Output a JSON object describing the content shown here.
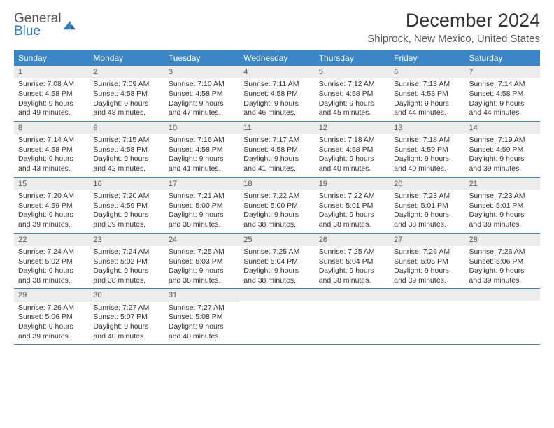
{
  "logo": {
    "text1": "General",
    "text2": "Blue"
  },
  "title": "December 2024",
  "location": "Shiprock, New Mexico, United States",
  "colors": {
    "header_bg": "#3b86c6",
    "header_text": "#ffffff",
    "daynum_bg": "#ececec",
    "rule": "#3b86c6",
    "logo_blue": "#2a7dc1"
  },
  "day_names": [
    "Sunday",
    "Monday",
    "Tuesday",
    "Wednesday",
    "Thursday",
    "Friday",
    "Saturday"
  ],
  "weeks": [
    [
      {
        "n": "1",
        "sr": "Sunrise: 7:08 AM",
        "ss": "Sunset: 4:58 PM",
        "dl": "Daylight: 9 hours and 49 minutes."
      },
      {
        "n": "2",
        "sr": "Sunrise: 7:09 AM",
        "ss": "Sunset: 4:58 PM",
        "dl": "Daylight: 9 hours and 48 minutes."
      },
      {
        "n": "3",
        "sr": "Sunrise: 7:10 AM",
        "ss": "Sunset: 4:58 PM",
        "dl": "Daylight: 9 hours and 47 minutes."
      },
      {
        "n": "4",
        "sr": "Sunrise: 7:11 AM",
        "ss": "Sunset: 4:58 PM",
        "dl": "Daylight: 9 hours and 46 minutes."
      },
      {
        "n": "5",
        "sr": "Sunrise: 7:12 AM",
        "ss": "Sunset: 4:58 PM",
        "dl": "Daylight: 9 hours and 45 minutes."
      },
      {
        "n": "6",
        "sr": "Sunrise: 7:13 AM",
        "ss": "Sunset: 4:58 PM",
        "dl": "Daylight: 9 hours and 44 minutes."
      },
      {
        "n": "7",
        "sr": "Sunrise: 7:14 AM",
        "ss": "Sunset: 4:58 PM",
        "dl": "Daylight: 9 hours and 44 minutes."
      }
    ],
    [
      {
        "n": "8",
        "sr": "Sunrise: 7:14 AM",
        "ss": "Sunset: 4:58 PM",
        "dl": "Daylight: 9 hours and 43 minutes."
      },
      {
        "n": "9",
        "sr": "Sunrise: 7:15 AM",
        "ss": "Sunset: 4:58 PM",
        "dl": "Daylight: 9 hours and 42 minutes."
      },
      {
        "n": "10",
        "sr": "Sunrise: 7:16 AM",
        "ss": "Sunset: 4:58 PM",
        "dl": "Daylight: 9 hours and 41 minutes."
      },
      {
        "n": "11",
        "sr": "Sunrise: 7:17 AM",
        "ss": "Sunset: 4:58 PM",
        "dl": "Daylight: 9 hours and 41 minutes."
      },
      {
        "n": "12",
        "sr": "Sunrise: 7:18 AM",
        "ss": "Sunset: 4:58 PM",
        "dl": "Daylight: 9 hours and 40 minutes."
      },
      {
        "n": "13",
        "sr": "Sunrise: 7:18 AM",
        "ss": "Sunset: 4:59 PM",
        "dl": "Daylight: 9 hours and 40 minutes."
      },
      {
        "n": "14",
        "sr": "Sunrise: 7:19 AM",
        "ss": "Sunset: 4:59 PM",
        "dl": "Daylight: 9 hours and 39 minutes."
      }
    ],
    [
      {
        "n": "15",
        "sr": "Sunrise: 7:20 AM",
        "ss": "Sunset: 4:59 PM",
        "dl": "Daylight: 9 hours and 39 minutes."
      },
      {
        "n": "16",
        "sr": "Sunrise: 7:20 AM",
        "ss": "Sunset: 4:59 PM",
        "dl": "Daylight: 9 hours and 39 minutes."
      },
      {
        "n": "17",
        "sr": "Sunrise: 7:21 AM",
        "ss": "Sunset: 5:00 PM",
        "dl": "Daylight: 9 hours and 38 minutes."
      },
      {
        "n": "18",
        "sr": "Sunrise: 7:22 AM",
        "ss": "Sunset: 5:00 PM",
        "dl": "Daylight: 9 hours and 38 minutes."
      },
      {
        "n": "19",
        "sr": "Sunrise: 7:22 AM",
        "ss": "Sunset: 5:01 PM",
        "dl": "Daylight: 9 hours and 38 minutes."
      },
      {
        "n": "20",
        "sr": "Sunrise: 7:23 AM",
        "ss": "Sunset: 5:01 PM",
        "dl": "Daylight: 9 hours and 38 minutes."
      },
      {
        "n": "21",
        "sr": "Sunrise: 7:23 AM",
        "ss": "Sunset: 5:01 PM",
        "dl": "Daylight: 9 hours and 38 minutes."
      }
    ],
    [
      {
        "n": "22",
        "sr": "Sunrise: 7:24 AM",
        "ss": "Sunset: 5:02 PM",
        "dl": "Daylight: 9 hours and 38 minutes."
      },
      {
        "n": "23",
        "sr": "Sunrise: 7:24 AM",
        "ss": "Sunset: 5:02 PM",
        "dl": "Daylight: 9 hours and 38 minutes."
      },
      {
        "n": "24",
        "sr": "Sunrise: 7:25 AM",
        "ss": "Sunset: 5:03 PM",
        "dl": "Daylight: 9 hours and 38 minutes."
      },
      {
        "n": "25",
        "sr": "Sunrise: 7:25 AM",
        "ss": "Sunset: 5:04 PM",
        "dl": "Daylight: 9 hours and 38 minutes."
      },
      {
        "n": "26",
        "sr": "Sunrise: 7:25 AM",
        "ss": "Sunset: 5:04 PM",
        "dl": "Daylight: 9 hours and 38 minutes."
      },
      {
        "n": "27",
        "sr": "Sunrise: 7:26 AM",
        "ss": "Sunset: 5:05 PM",
        "dl": "Daylight: 9 hours and 39 minutes."
      },
      {
        "n": "28",
        "sr": "Sunrise: 7:26 AM",
        "ss": "Sunset: 5:06 PM",
        "dl": "Daylight: 9 hours and 39 minutes."
      }
    ],
    [
      {
        "n": "29",
        "sr": "Sunrise: 7:26 AM",
        "ss": "Sunset: 5:06 PM",
        "dl": "Daylight: 9 hours and 39 minutes."
      },
      {
        "n": "30",
        "sr": "Sunrise: 7:27 AM",
        "ss": "Sunset: 5:07 PM",
        "dl": "Daylight: 9 hours and 40 minutes."
      },
      {
        "n": "31",
        "sr": "Sunrise: 7:27 AM",
        "ss": "Sunset: 5:08 PM",
        "dl": "Daylight: 9 hours and 40 minutes."
      },
      {
        "empty": true
      },
      {
        "empty": true
      },
      {
        "empty": true
      },
      {
        "empty": true
      }
    ]
  ]
}
